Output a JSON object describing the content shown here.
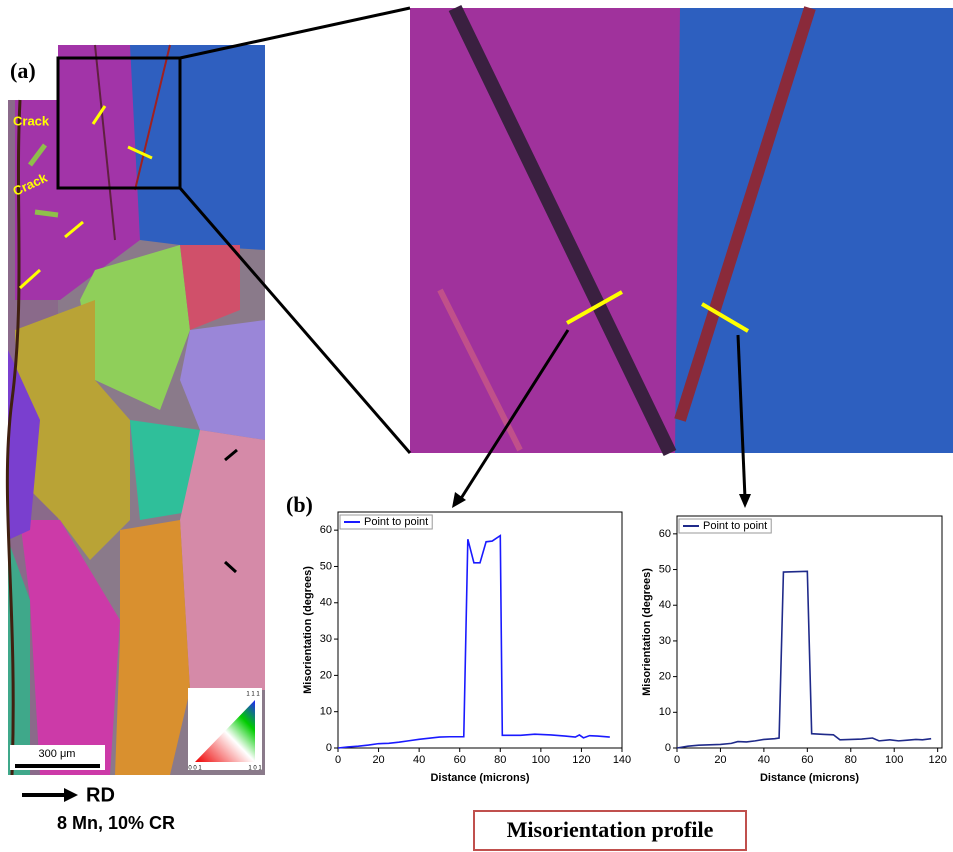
{
  "figure": {
    "panel_a": "(a)",
    "panel_b": "(b)",
    "crack_1": "Crack",
    "crack_2": "Crack",
    "scale_bar": "300 μm",
    "key_top": "1 1 1",
    "key_left": "0 0 1",
    "key_right": "1 0 1",
    "direction": "RD",
    "sample": "8 Mn, 10% CR",
    "caption": "Misorientation profile"
  },
  "chart_data": [
    {
      "type": "line",
      "x_label": "Distance (microns)",
      "y_label": "Misorientation (degrees)",
      "x": [
        0,
        5,
        10,
        15,
        20,
        25,
        30,
        35,
        40,
        45,
        50,
        55,
        62,
        64,
        67,
        70,
        73,
        76,
        80,
        81,
        90,
        97,
        105,
        112,
        117,
        119,
        121,
        124,
        128,
        134
      ],
      "series": [
        {
          "name": "Point to point",
          "color": "#1a1aff",
          "values": [
            0,
            0.3,
            0.5,
            0.8,
            1.2,
            1.3,
            1.6,
            2.0,
            2.4,
            2.7,
            3.0,
            3.1,
            3.1,
            57.5,
            51,
            51,
            56.8,
            57,
            58.5,
            3.5,
            3.5,
            3.8,
            3.6,
            3.3,
            3.0,
            3.6,
            2.8,
            3.4,
            3.3,
            3.0
          ]
        }
      ],
      "xlim": [
        0,
        140
      ],
      "xticks": [
        0,
        20,
        40,
        60,
        80,
        100,
        120,
        140
      ],
      "ylim": [
        0,
        65
      ],
      "yticks": [
        0,
        10,
        20,
        30,
        40,
        50,
        60
      ],
      "legend": "upper left"
    },
    {
      "type": "line",
      "x_label": "Distance (microns)",
      "y_label": "Misorientation (degrees)",
      "x": [
        0,
        5,
        10,
        15,
        20,
        25,
        28,
        32,
        36,
        40,
        45,
        47,
        49,
        60,
        62,
        68,
        72,
        75,
        80,
        85,
        90,
        93,
        98,
        102,
        106,
        110,
        113,
        117
      ],
      "series": [
        {
          "name": "Point to point",
          "color": "#1f2a8a",
          "values": [
            0,
            0.5,
            0.8,
            0.9,
            1.0,
            1.3,
            1.8,
            1.7,
            2.0,
            2.4,
            2.6,
            2.8,
            49.3,
            49.5,
            4.0,
            3.8,
            3.7,
            2.3,
            2.4,
            2.5,
            2.8,
            2.0,
            2.3,
            2.0,
            2.2,
            2.4,
            2.3,
            2.6
          ]
        }
      ],
      "xlim": [
        0,
        122
      ],
      "xticks": [
        0,
        20,
        40,
        60,
        80,
        100,
        120
      ],
      "ylim": [
        0,
        65
      ],
      "yticks": [
        0,
        10,
        20,
        30,
        40,
        50,
        60
      ],
      "legend": "upper left"
    }
  ]
}
